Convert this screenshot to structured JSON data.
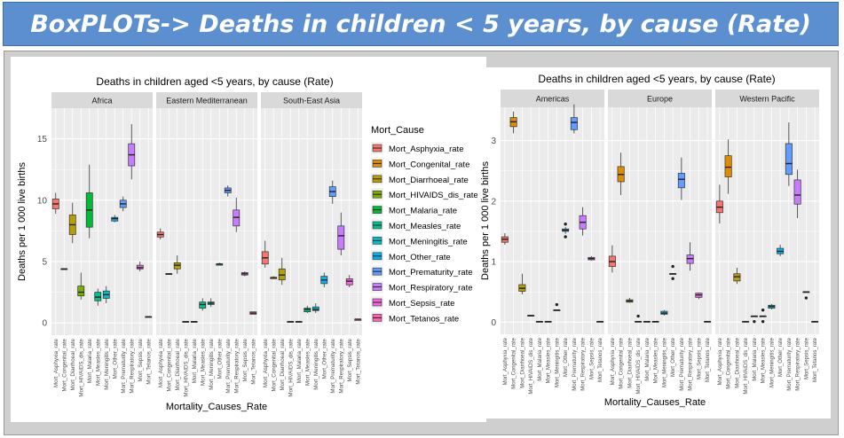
{
  "banner": {
    "title": "BoxPLOTs-> Deaths in children < 5 years, by cause (Rate)"
  },
  "legend": {
    "title": "Mort_Cause"
  },
  "colors": [
    "#F8766D",
    "#DE8C00",
    "#B79F00",
    "#7CAE00",
    "#00BA38",
    "#00C08B",
    "#00BFC4",
    "#00B4F0",
    "#619CFF",
    "#C77CFF",
    "#F564E3",
    "#FF64B0"
  ],
  "chart_data": [
    {
      "type": "boxplot",
      "title": "Deaths in children aged <5 years, by cause (Rate)",
      "xlabel": "Mortality_Causes_Rate",
      "ylabel": "Deaths per 1 000 live births",
      "ylim": [
        -1,
        17.5
      ],
      "yticks": [
        0,
        5,
        10,
        15
      ],
      "categories": [
        "Mort_Asphyxia_rate",
        "Mort_Congenital_rate",
        "Mort_Diarrhoeal_rate",
        "Mort_HIVAIDS_dis_rate",
        "Mort_Malaria_rate",
        "Mort_Measles_rate",
        "Mort_Meningitis_rate",
        "Mort_Other_rate",
        "Mort_Prematurity_rate",
        "Mort_Respiratory_rate",
        "Mort_Sepsis_rate",
        "Mort_Tetanos_rate"
      ],
      "legend_position": "right",
      "panels": [
        {
          "name": "Africa",
          "boxes": [
            [
              8.9,
              9.3,
              9.7,
              10.1,
              10.6
            ],
            [
              4.4,
              4.4,
              4.4,
              4.4,
              4.4
            ],
            [
              6.5,
              7.2,
              8.0,
              8.8,
              9.8
            ],
            [
              1.9,
              2.2,
              2.5,
              3.0,
              4.1
            ],
            [
              6.9,
              7.8,
              9.2,
              10.6,
              12.9
            ],
            [
              1.4,
              1.8,
              2.1,
              2.5,
              2.8
            ],
            [
              1.6,
              2.0,
              2.3,
              2.6,
              3.0
            ],
            [
              8.2,
              8.3,
              8.5,
              8.6,
              8.8
            ],
            [
              9.1,
              9.4,
              9.7,
              10.0,
              10.3
            ],
            [
              11.7,
              12.8,
              13.7,
              14.6,
              16.2
            ],
            [
              4.2,
              4.4,
              4.5,
              4.7,
              5.0
            ],
            [
              0.5,
              0.5,
              0.5,
              0.5,
              0.5
            ]
          ]
        },
        {
          "name": "Eastern Mediterranean",
          "boxes": [
            [
              6.8,
              7.0,
              7.2,
              7.4,
              7.7
            ],
            [
              4.0,
              4.0,
              4.0,
              4.0,
              4.0
            ],
            [
              4.0,
              4.4,
              4.7,
              4.9,
              5.5
            ],
            [
              0.1,
              0.1,
              0.1,
              0.1,
              0.1
            ],
            [
              0.1,
              0.1,
              0.1,
              0.1,
              0.1
            ],
            [
              1.0,
              1.2,
              1.5,
              1.7,
              2.0
            ],
            [
              1.3,
              1.5,
              1.6,
              1.7,
              2.0
            ],
            [
              4.7,
              4.7,
              4.8,
              4.8,
              4.9
            ],
            [
              10.3,
              10.6,
              10.8,
              11.0,
              11.2
            ],
            [
              7.4,
              7.9,
              8.6,
              9.2,
              10.2
            ],
            [
              3.8,
              3.9,
              4.0,
              4.1,
              4.2
            ],
            [
              0.7,
              0.7,
              0.8,
              0.9,
              0.9
            ]
          ]
        },
        {
          "name": "South-East Asia",
          "boxes": [
            [
              4.5,
              4.8,
              5.3,
              5.8,
              6.7
            ],
            [
              3.6,
              3.6,
              3.7,
              3.7,
              3.8
            ],
            [
              3.1,
              3.5,
              3.9,
              4.4,
              5.3
            ],
            [
              0.1,
              0.1,
              0.1,
              0.1,
              0.1
            ],
            [
              0.1,
              0.1,
              0.1,
              0.1,
              0.1
            ],
            [
              0.8,
              0.9,
              1.1,
              1.2,
              1.4
            ],
            [
              0.8,
              1.0,
              1.1,
              1.3,
              1.6
            ],
            [
              2.9,
              3.2,
              3.5,
              3.8,
              4.1
            ],
            [
              9.7,
              10.3,
              10.7,
              11.1,
              11.6
            ],
            [
              5.5,
              6.0,
              7.1,
              7.9,
              9.0
            ],
            [
              2.9,
              3.1,
              3.4,
              3.6,
              3.9
            ],
            [
              0.2,
              0.2,
              0.3,
              0.3,
              0.3
            ]
          ]
        }
      ]
    },
    {
      "type": "boxplot",
      "title": "Deaths in children aged <5 years, by cause (Rate)",
      "xlabel": "Mortality_Causes_Rate",
      "ylabel": "Deaths per 1 000 live births",
      "ylim": [
        -0.2,
        3.55
      ],
      "yticks": [
        0,
        1,
        2,
        3
      ],
      "categories": [
        "Mort_Asphyxia_rate",
        "Mort_Congenital_rate",
        "Mort_Diarrhoeal_rate",
        "Mort_HIVAIDS_dis_rate",
        "Mort_Malaria_rate",
        "Mort_Measles_rate",
        "Mort_Meningitis_rate",
        "Mort_Other_rate",
        "Mort_Prematurity_rate",
        "Mort_Respiratory_rate",
        "Mort_Sepsis_rate",
        "Mort_Tetanos_rate"
      ],
      "panels": [
        {
          "name": "Americas",
          "boxes": [
            [
              1.28,
              1.32,
              1.37,
              1.41,
              1.47
            ],
            [
              3.12,
              3.23,
              3.31,
              3.38,
              3.48
            ],
            [
              0.46,
              0.51,
              0.56,
              0.62,
              0.8
            ],
            [
              0.11,
              0.11,
              0.11,
              0.11,
              0.11
            ],
            [
              0.01,
              0.01,
              0.01,
              0.01,
              0.01
            ],
            [
              0.01,
              0.01,
              0.01,
              0.01,
              0.01
            ],
            [
              0.2,
              0.2,
              0.2,
              0.2,
              0.2
            ],
            [
              1.46,
              1.5,
              1.52,
              1.54,
              1.57
            ],
            [
              3.12,
              3.18,
              3.3,
              3.38,
              3.6
            ],
            [
              1.43,
              1.54,
              1.65,
              1.76,
              1.9
            ],
            [
              1.02,
              1.03,
              1.05,
              1.07,
              1.09
            ],
            [
              0.01,
              0.01,
              0.01,
              0.01,
              0.01
            ]
          ],
          "outliers": [
            [
              6,
              0.29
            ],
            [
              7,
              1.62
            ],
            [
              7,
              1.41
            ]
          ]
        },
        {
          "name": "Europe",
          "boxes": [
            [
              0.82,
              0.92,
              1.0,
              1.09,
              1.27
            ],
            [
              2.1,
              2.32,
              2.44,
              2.57,
              2.8
            ],
            [
              0.32,
              0.33,
              0.35,
              0.37,
              0.4
            ],
            [
              0.01,
              0.01,
              0.01,
              0.01,
              0.01
            ],
            [
              0.01,
              0.01,
              0.01,
              0.01,
              0.01
            ],
            [
              0.01,
              0.01,
              0.01,
              0.01,
              0.01
            ],
            [
              0.11,
              0.13,
              0.15,
              0.18,
              0.2
            ],
            [
              0.8,
              0.8,
              0.8,
              0.8,
              0.8
            ],
            [
              2.02,
              2.22,
              2.36,
              2.46,
              2.72
            ],
            [
              0.85,
              0.97,
              1.05,
              1.11,
              1.32
            ],
            [
              0.38,
              0.41,
              0.45,
              0.48,
              0.49
            ],
            [
              0.01,
              0.01,
              0.01,
              0.01,
              0.01
            ]
          ],
          "outliers": [
            [
              3,
              0.1
            ],
            [
              7,
              0.92
            ],
            [
              7,
              0.72
            ]
          ]
        },
        {
          "name": "Western Pacific",
          "boxes": [
            [
              1.63,
              1.81,
              1.9,
              2.0,
              2.27
            ],
            [
              2.12,
              2.4,
              2.56,
              2.75,
              3.02
            ],
            [
              0.63,
              0.68,
              0.75,
              0.8,
              0.9
            ],
            [
              0.01,
              0.01,
              0.01,
              0.01,
              0.01
            ],
            [
              0.1,
              0.1,
              0.1,
              0.1,
              0.1
            ],
            [
              0.1,
              0.1,
              0.1,
              0.1,
              0.1
            ],
            [
              0.21,
              0.23,
              0.26,
              0.28,
              0.3
            ],
            [
              1.09,
              1.13,
              1.17,
              1.22,
              1.28
            ],
            [
              2.25,
              2.44,
              2.62,
              2.95,
              3.3
            ],
            [
              1.72,
              1.95,
              2.1,
              2.35,
              2.52
            ],
            [
              0.5,
              0.5,
              0.5,
              0.5,
              0.5
            ],
            [
              0.01,
              0.01,
              0.01,
              0.01,
              0.01
            ]
          ],
          "outliers": [
            [
              4,
              0.01
            ],
            [
              5,
              0.01
            ],
            [
              5,
              0.2
            ],
            [
              10,
              0.4
            ]
          ]
        }
      ]
    }
  ]
}
